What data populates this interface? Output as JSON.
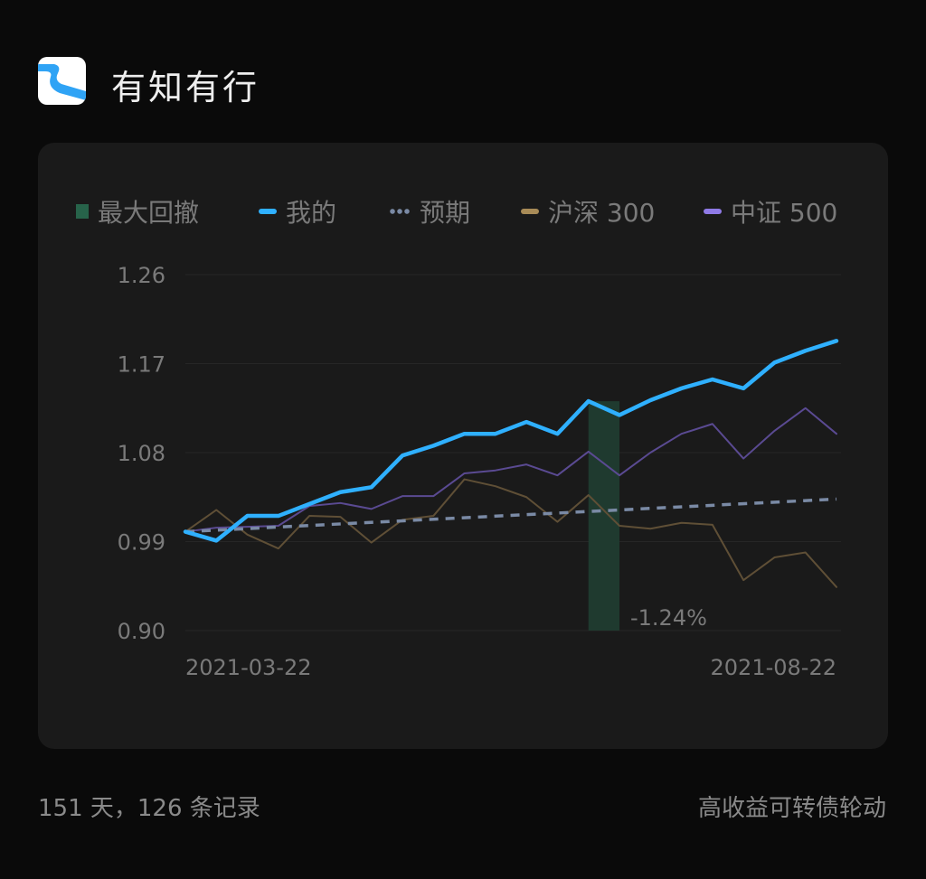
{
  "header": {
    "title": "有知有行",
    "logo": "river-logo"
  },
  "footer": {
    "left": "151 天，126 条记录",
    "right": "高收益可转债轮动"
  },
  "chart_data": {
    "type": "line",
    "title": "",
    "xlabel": "",
    "ylabel": "",
    "x_tick_labels": [
      "2021-03-22",
      "2021-08-22"
    ],
    "y_ticks": [
      "1.26",
      "1.17",
      "1.08",
      "0.99",
      "0.90"
    ],
    "ylim": [
      0.9,
      1.26
    ],
    "grid": true,
    "legend_placement": "top",
    "legend": [
      {
        "name": "最大回撤",
        "color": "#27634a",
        "marker": "square"
      },
      {
        "name": "我的",
        "color": "#2fb0ff",
        "marker": "line"
      },
      {
        "name": "预期",
        "color": "#7a8aa5",
        "marker": "dots"
      },
      {
        "name": "沪深 300",
        "color": "#a88b57",
        "marker": "line"
      },
      {
        "name": "中证 500",
        "color": "#8f7ae6",
        "marker": "line"
      }
    ],
    "series": [
      {
        "name": "我的",
        "color": "#2fb0ff",
        "values": [
          1.0,
          0.991,
          1.016,
          1.016,
          1.028,
          1.04,
          1.045,
          1.077,
          1.087,
          1.099,
          1.099,
          1.111,
          1.099,
          1.132,
          1.118,
          1.133,
          1.145,
          1.154,
          1.145,
          1.171,
          1.183,
          1.193
        ]
      },
      {
        "name": "预期",
        "color": "#7a8aa5",
        "values": [
          1.0,
          1.033
        ]
      },
      {
        "name": "沪深 300",
        "color": "#5f4f36",
        "values": [
          1.0,
          1.022,
          0.997,
          0.983,
          1.016,
          1.015,
          0.989,
          1.012,
          1.016,
          1.053,
          1.046,
          1.035,
          1.01,
          1.037,
          1.006,
          1.003,
          1.009,
          1.007,
          0.951,
          0.974,
          0.979,
          0.944
        ]
      },
      {
        "name": "中证 500",
        "color": "#5a4a92",
        "values": [
          1.0,
          1.004,
          1.005,
          1.006,
          1.026,
          1.029,
          1.023,
          1.036,
          1.036,
          1.059,
          1.062,
          1.068,
          1.057,
          1.081,
          1.057,
          1.08,
          1.099,
          1.109,
          1.074,
          1.102,
          1.125,
          1.099
        ]
      }
    ],
    "max_drawdown": {
      "start_index": 13,
      "end_index": 14,
      "label": "-1.24%",
      "color": "#1f3a2f"
    }
  }
}
